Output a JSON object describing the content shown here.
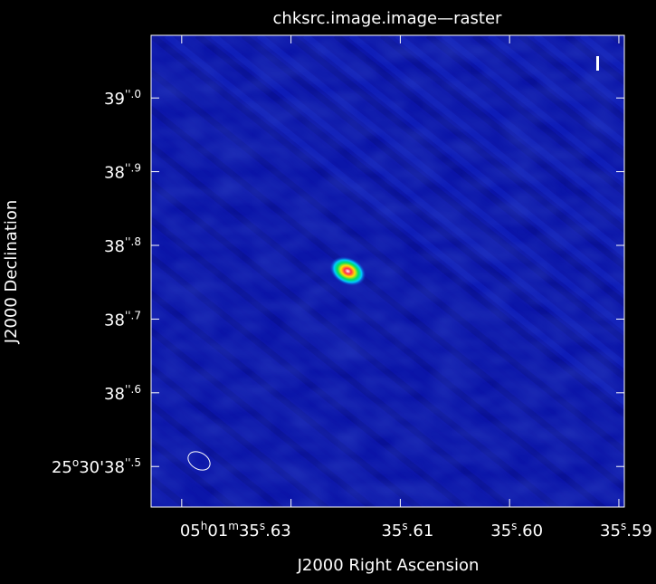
{
  "chart_data": {
    "type": "heatmap",
    "title": "chksrc.image.image—raster",
    "xlabel": "J2000 Right Ascension",
    "ylabel": "J2000 Declination",
    "x_ticks": [
      {
        "value": 35.63,
        "label": [
          "05",
          "h",
          "01",
          "m",
          "35",
          "s",
          ".63"
        ]
      },
      {
        "value": 35.62,
        "label": null
      },
      {
        "value": 35.61,
        "label": [
          "35",
          "s",
          ".61"
        ]
      },
      {
        "value": 35.6,
        "label": [
          "35",
          "s",
          ".60"
        ]
      },
      {
        "value": 35.59,
        "label": [
          "35",
          "s",
          ".59"
        ]
      }
    ],
    "y_ticks": [
      {
        "value": 38.5,
        "label": [
          "25",
          "o",
          "30'38",
          "''.5"
        ]
      },
      {
        "value": 38.6,
        "label": [
          "38",
          "''.6"
        ]
      },
      {
        "value": 38.7,
        "label": [
          "38",
          "''.7"
        ]
      },
      {
        "value": 38.8,
        "label": [
          "38",
          "''.8"
        ]
      },
      {
        "value": 38.9,
        "label": [
          "38",
          "''.9"
        ]
      },
      {
        "value": 39.0,
        "label": [
          "39",
          "''.0"
        ]
      }
    ],
    "xlim": [
      35.6328,
      35.5895
    ],
    "ylim": [
      38.445,
      39.085
    ],
    "source": {
      "ra": 35.6148,
      "dec": 38.765,
      "shape": "compact elliptical peak"
    },
    "colormap": "rainbow (dark blue background, cyan-green-yellow-red-white core)",
    "background_color": "#0b14a8",
    "beam": "ellipse, lower-left corner",
    "polarization_marker": "vertical bar, top-right corner",
    "grid": false
  }
}
